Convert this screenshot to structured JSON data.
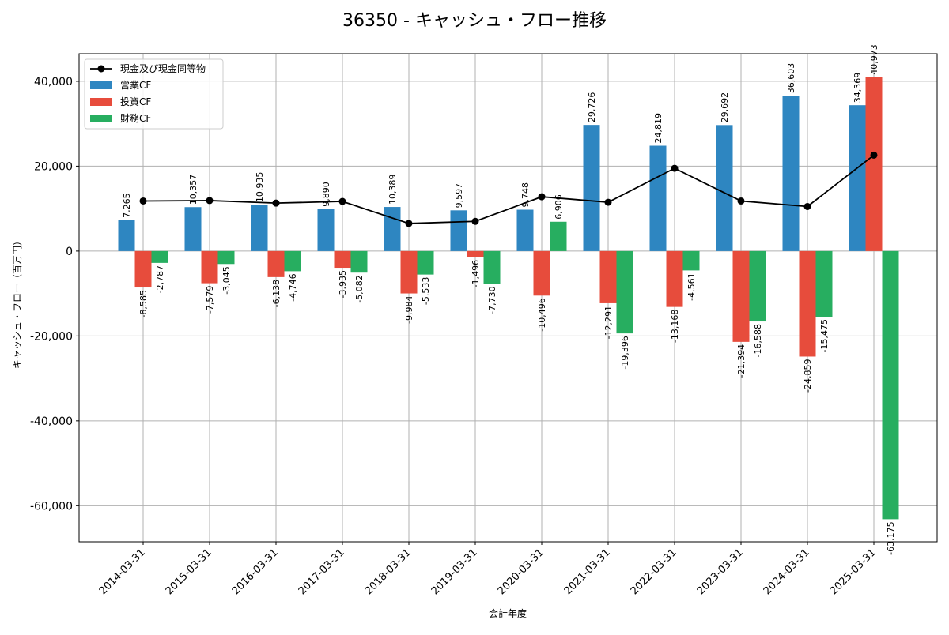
{
  "chart_data": {
    "type": "bar",
    "title": "36350 - キャッシュ・フロー推移",
    "xlabel": "会計年度",
    "ylabel": "キャッシュ・フロー（百万円）",
    "ylim": [
      -68500,
      46500
    ],
    "yticks": [
      -60000,
      -40000,
      -20000,
      0,
      20000,
      40000
    ],
    "ytick_labels": [
      "-60,000",
      "-40,000",
      "-20,000",
      "0",
      "20,000",
      "40,000"
    ],
    "grid": true,
    "legend_position": "top-left",
    "categories": [
      "2014-03-31",
      "2015-03-31",
      "2016-03-31",
      "2017-03-31",
      "2018-03-31",
      "2019-03-31",
      "2020-03-31",
      "2021-03-31",
      "2022-03-31",
      "2023-03-31",
      "2024-03-31",
      "2025-03-31"
    ],
    "series": [
      {
        "name": "営業CF",
        "color": "#2e86c1",
        "values": [
          7265,
          10357,
          10935,
          9890,
          10389,
          9597,
          9748,
          29726,
          24819,
          29692,
          36603,
          34369
        ],
        "labels": [
          "7,265",
          "10,357",
          "10,935",
          "9,890",
          "10,389",
          "9,597",
          "9,748",
          "29,726",
          "24,819",
          "29,692",
          "36,603",
          "34,369"
        ]
      },
      {
        "name": "投資CF",
        "color": "#e74c3c",
        "values": [
          -8585,
          -7579,
          -6138,
          -3935,
          -9984,
          -1496,
          -10496,
          -12291,
          -13168,
          -21394,
          -24859,
          40973
        ],
        "labels": [
          "-8,585",
          "-7,579",
          "-6,138",
          "-3,935",
          "-9,984",
          "-1,496",
          "-10,496",
          "-12,291",
          "-13,168",
          "-21,394",
          "-24,859",
          "40,973"
        ]
      },
      {
        "name": "財務CF",
        "color": "#27ae60",
        "values": [
          -2787,
          -3045,
          -4746,
          -5082,
          -5533,
          -7730,
          6906,
          -19396,
          -4561,
          -16588,
          -15475,
          -63175
        ],
        "labels": [
          "-2,787",
          "-3,045",
          "-4,746",
          "-5,082",
          "-5,533",
          "-7,730",
          "6,906",
          "-19,396",
          "-4,561",
          "-16,588",
          "-15,475",
          "-63,175"
        ]
      }
    ],
    "line": {
      "name": "現金及び現金同等物",
      "color": "#000000",
      "values": [
        11800,
        11900,
        11300,
        11700,
        6500,
        7000,
        12800,
        11500,
        19500,
        11800,
        10500,
        22600
      ]
    }
  }
}
